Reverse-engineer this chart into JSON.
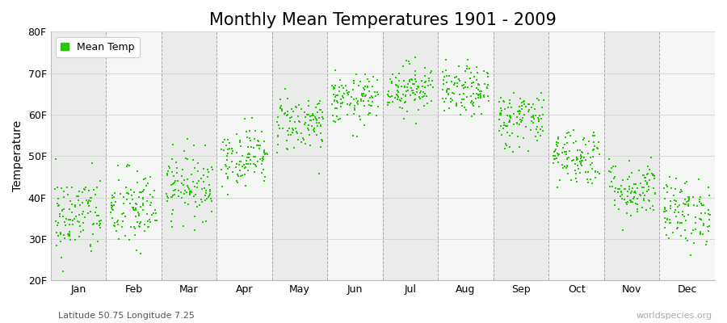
{
  "title": "Monthly Mean Temperatures 1901 - 2009",
  "ylabel": "Temperature",
  "subtitle_left": "Latitude 50.75 Longitude 7.25",
  "subtitle_right": "worldspecies.org",
  "ylim": [
    20,
    80
  ],
  "yticks": [
    20,
    30,
    40,
    50,
    60,
    70,
    80
  ],
  "ytick_labels": [
    "20F",
    "30F",
    "40F",
    "50F",
    "60F",
    "70F",
    "80F"
  ],
  "months": [
    "Jan",
    "Feb",
    "Mar",
    "Apr",
    "May",
    "Jun",
    "Jul",
    "Aug",
    "Sep",
    "Oct",
    "Nov",
    "Dec"
  ],
  "month_means_F": [
    35.5,
    37.0,
    43.0,
    50.0,
    58.0,
    63.5,
    66.5,
    65.5,
    59.0,
    50.0,
    42.0,
    36.5
  ],
  "month_stds_F": [
    5.0,
    5.0,
    4.0,
    3.5,
    3.5,
    3.0,
    3.0,
    3.0,
    3.5,
    3.5,
    3.5,
    4.0
  ],
  "n_years": 109,
  "dot_color": "#22cc00",
  "dot_size": 4,
  "bg_band_even": "#ebebeb",
  "bg_band_odd": "#f5f5f5",
  "grid_color": "#aaaaaa",
  "vline_color": "#888888",
  "legend_label": "Mean Temp",
  "title_fontsize": 15,
  "axis_label_fontsize": 10,
  "tick_fontsize": 9,
  "subtitle_fontsize": 8,
  "figwidth": 9.0,
  "figheight": 4.0,
  "dpi": 100
}
